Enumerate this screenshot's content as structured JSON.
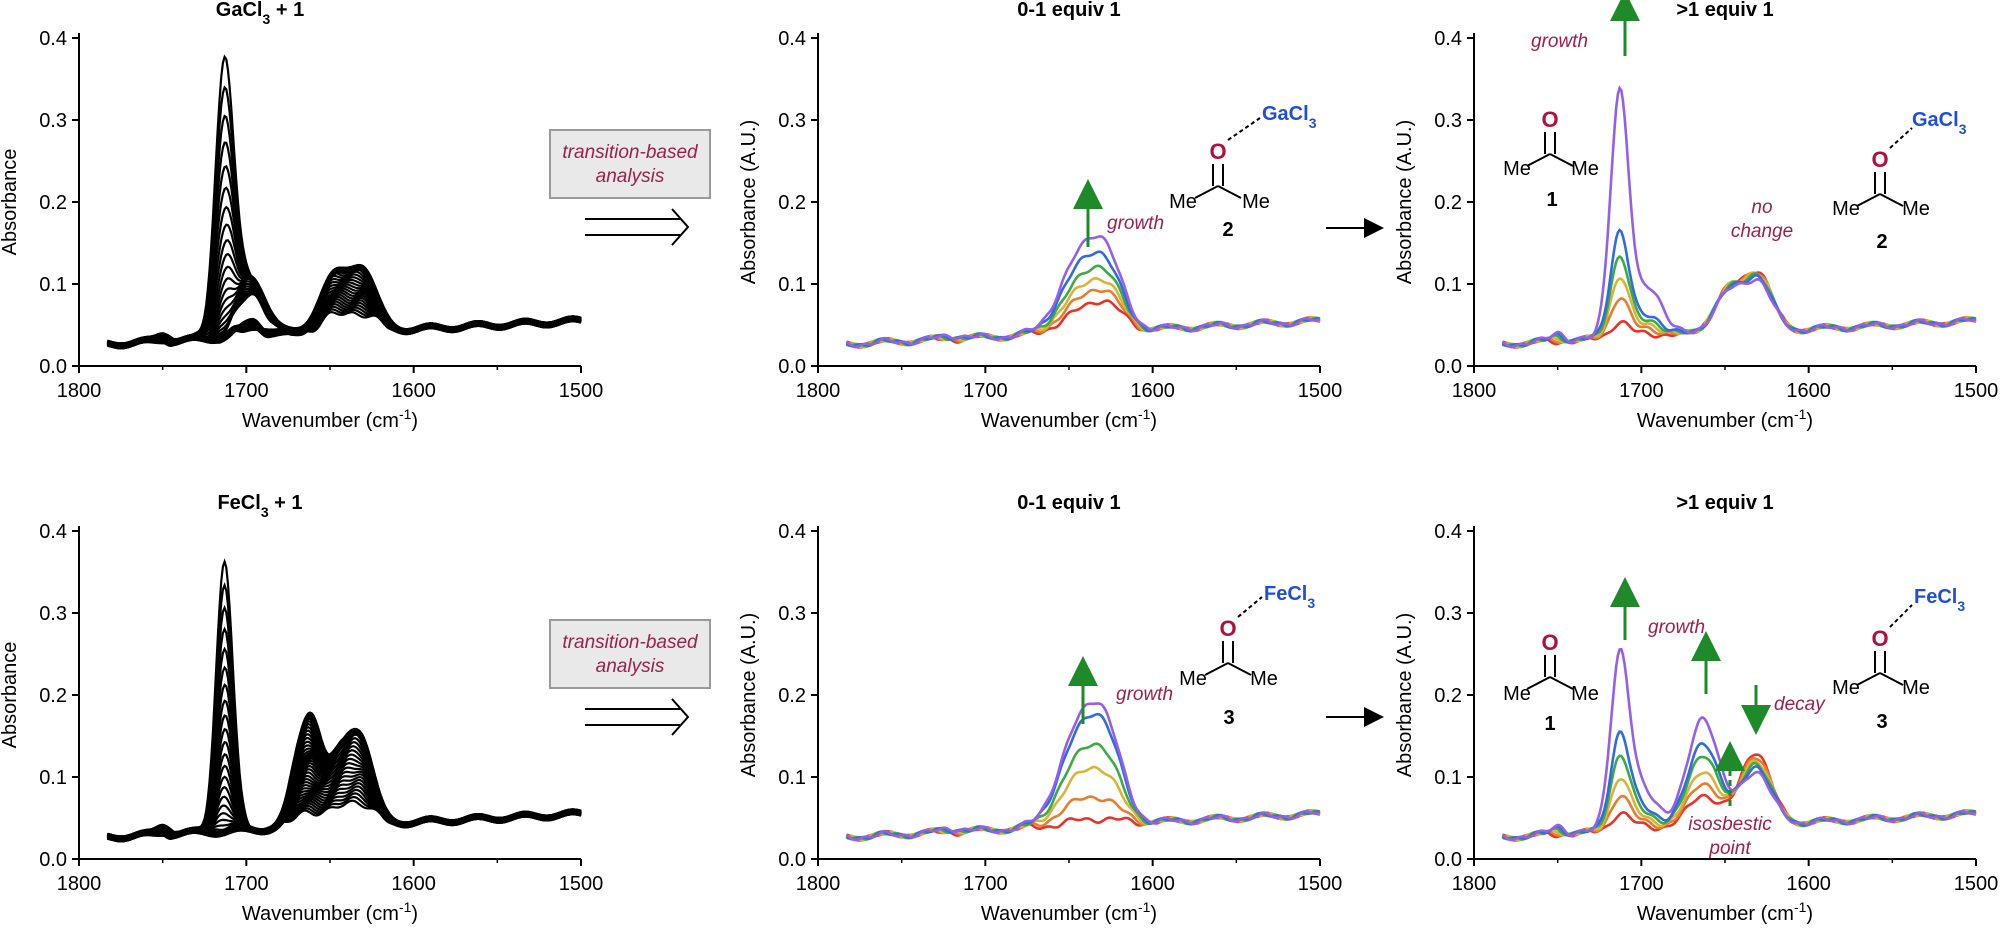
{
  "chart_data": [
    {
      "id": "ga_raw",
      "type": "line",
      "title": "GaCl3 + 1",
      "title_base": "GaCl",
      "title_sub": "3",
      "title_tail": " + 1",
      "xlabel": "Wavenumber (cm-1)",
      "ylabel": "Absorbance",
      "xlim": [
        1800,
        1500
      ],
      "ylim": [
        0,
        0.4
      ],
      "xticks": [
        1800,
        1700,
        1600,
        1500
      ],
      "yticks": [
        0.0,
        0.1,
        0.2,
        0.3,
        0.4
      ],
      "line_color": "#000000",
      "line_count": 40,
      "peaks": [
        {
          "x": 1713,
          "range": [
            0.0,
            0.365
          ]
        },
        {
          "x": 1695,
          "range": [
            0.0,
            0.05
          ]
        },
        {
          "x": 1650,
          "range": [
            0.02,
            0.05
          ]
        },
        {
          "x": 1630,
          "range": [
            0.03,
            0.075
          ]
        }
      ]
    },
    {
      "id": "ga_low",
      "type": "line",
      "title": "0-1 equiv 1",
      "xlabel": "Wavenumber (cm-1)",
      "ylabel": "Absorbance (A.U.)",
      "xlim": [
        1800,
        1500
      ],
      "ylim": [
        0,
        0.4
      ],
      "xticks": [
        1800,
        1700,
        1600,
        1500
      ],
      "yticks": [
        0.0,
        0.1,
        0.2,
        0.3,
        0.4
      ],
      "series": [
        {
          "color": "#e8332a",
          "peak1713": 0.0,
          "peak1650": 0.02,
          "peak1630": 0.03
        },
        {
          "color": "#e67e2e",
          "peak1713": 0.0,
          "peak1650": 0.03,
          "peak1630": 0.04
        },
        {
          "color": "#d8b43a",
          "peak1713": 0.0,
          "peak1650": 0.04,
          "peak1630": 0.048
        },
        {
          "color": "#3cab43",
          "peak1713": 0.0,
          "peak1650": 0.05,
          "peak1630": 0.058
        },
        {
          "color": "#2f6ce0",
          "peak1713": 0.0,
          "peak1650": 0.065,
          "peak1630": 0.068
        },
        {
          "color": "#9460e8",
          "peak1713": 0.0,
          "peak1650": 0.078,
          "peak1630": 0.082
        }
      ]
    },
    {
      "id": "ga_high",
      "type": "line",
      "title": ">1 equiv 1",
      "xlabel": "Wavenumber (cm-1)",
      "ylabel": "Absorbance (A.U.)",
      "xlim": [
        1800,
        1500
      ],
      "ylim": [
        0,
        0.4
      ],
      "xticks": [
        1800,
        1700,
        1600,
        1500
      ],
      "yticks": [
        0.0,
        0.1,
        0.2,
        0.3,
        0.4
      ],
      "series": [
        {
          "color": "#e8332a",
          "peak1713": 0.02,
          "peak1650": 0.05,
          "peak1630": 0.068
        },
        {
          "color": "#e67e2e",
          "peak1713": 0.05,
          "peak1650": 0.05,
          "peak1630": 0.067
        },
        {
          "color": "#d8b43a",
          "peak1713": 0.075,
          "peak1650": 0.05,
          "peak1630": 0.066
        },
        {
          "color": "#3cab43",
          "peak1713": 0.1,
          "peak1650": 0.049,
          "peak1630": 0.064
        },
        {
          "color": "#2f6ce0",
          "peak1713": 0.13,
          "peak1650": 0.048,
          "peak1630": 0.062
        },
        {
          "color": "#9460e8",
          "peak1713": 0.3,
          "peak1650": 0.047,
          "peak1630": 0.058
        }
      ]
    },
    {
      "id": "fe_raw",
      "type": "line",
      "title": "FeCl3 + 1",
      "title_base": "FeCl",
      "title_sub": "3",
      "title_tail": " + 1",
      "xlabel": "Wavenumber (cm-1)",
      "ylabel": "Absorbance",
      "xlim": [
        1800,
        1500
      ],
      "ylim": [
        0,
        0.4
      ],
      "xticks": [
        1800,
        1700,
        1600,
        1500
      ],
      "yticks": [
        0.0,
        0.1,
        0.2,
        0.3,
        0.4
      ],
      "line_color": "#000000",
      "line_count": 40,
      "peaks": [
        {
          "x": 1713,
          "range": [
            0.0,
            0.32
          ]
        },
        {
          "x": 1663,
          "range": [
            0.02,
            0.14
          ]
        },
        {
          "x": 1640,
          "range": [
            0.02,
            0.06
          ]
        },
        {
          "x": 1630,
          "range": [
            0.02,
            0.06
          ]
        }
      ]
    },
    {
      "id": "fe_low",
      "type": "line",
      "title": "0-1 equiv 1",
      "xlabel": "Wavenumber (cm-1)",
      "ylabel": "Absorbance (A.U.)",
      "xlim": [
        1800,
        1500
      ],
      "ylim": [
        0,
        0.4
      ],
      "xticks": [
        1800,
        1700,
        1600,
        1500
      ],
      "yticks": [
        0.0,
        0.1,
        0.2,
        0.3,
        0.4
      ],
      "series": [
        {
          "color": "#e8332a",
          "peak1713": 0.0,
          "peak1650": 0.005,
          "peak1630": 0.005
        },
        {
          "color": "#e67e2e",
          "peak1713": 0.0,
          "peak1650": 0.025,
          "peak1630": 0.022
        },
        {
          "color": "#d8b43a",
          "peak1713": 0.0,
          "peak1650": 0.05,
          "peak1630": 0.046
        },
        {
          "color": "#3cab43",
          "peak1713": 0.0,
          "peak1650": 0.07,
          "peak1630": 0.065
        },
        {
          "color": "#2f6ce0",
          "peak1713": 0.0,
          "peak1650": 0.095,
          "peak1630": 0.09
        },
        {
          "color": "#9460e8",
          "peak1713": 0.0,
          "peak1650": 0.105,
          "peak1630": 0.1
        }
      ]
    },
    {
      "id": "fe_high",
      "type": "line",
      "title": ">1 equiv 1",
      "xlabel": "Wavenumber (cm-1)",
      "ylabel": "Absorbance (A.U.)",
      "xlim": [
        1800,
        1500
      ],
      "ylim": [
        0,
        0.4
      ],
      "xticks": [
        1800,
        1700,
        1600,
        1500
      ],
      "yticks": [
        0.0,
        0.1,
        0.2,
        0.3,
        0.4
      ],
      "series": [
        {
          "color": "#e8332a",
          "peak1713": 0.02,
          "peak1663": 0.04,
          "peak1630": 0.09
        },
        {
          "color": "#e67e2e",
          "peak1713": 0.04,
          "peak1663": 0.055,
          "peak1630": 0.085
        },
        {
          "color": "#d8b43a",
          "peak1713": 0.06,
          "peak1663": 0.07,
          "peak1630": 0.08
        },
        {
          "color": "#3cab43",
          "peak1713": 0.085,
          "peak1663": 0.09,
          "peak1630": 0.076
        },
        {
          "color": "#2f6ce0",
          "peak1713": 0.11,
          "peak1663": 0.105,
          "peak1630": 0.072
        },
        {
          "color": "#9460e8",
          "peak1713": 0.2,
          "peak1663": 0.135,
          "peak1630": 0.066
        }
      ]
    }
  ],
  "annotations": {
    "growth": "growth",
    "no_change_1": "no",
    "no_change_2": "change",
    "decay": "decay",
    "isosbestic_1": "isosbestic",
    "isosbestic_2": "point",
    "box_line1": "transition-based",
    "box_line2": "analysis"
  },
  "chem": {
    "oxygen": "O",
    "methyl": "Me",
    "ga_base": "GaCl",
    "fe_base": "FeCl",
    "sub3": "3",
    "label_1": "1",
    "label_2": "2",
    "label_3": "3"
  },
  "xlabel_base": "Wavenumber (cm",
  "xlabel_sup": "-1",
  "xlabel_tail": ")",
  "colors": {
    "growth_arrow": "#1f8a2a",
    "annotation": "#9c1f4e",
    "metal": "#1f4fd6",
    "oxygen": "#b0103c",
    "box_fill": "#e9e9e9",
    "box_stroke": "#9a9a9a"
  }
}
